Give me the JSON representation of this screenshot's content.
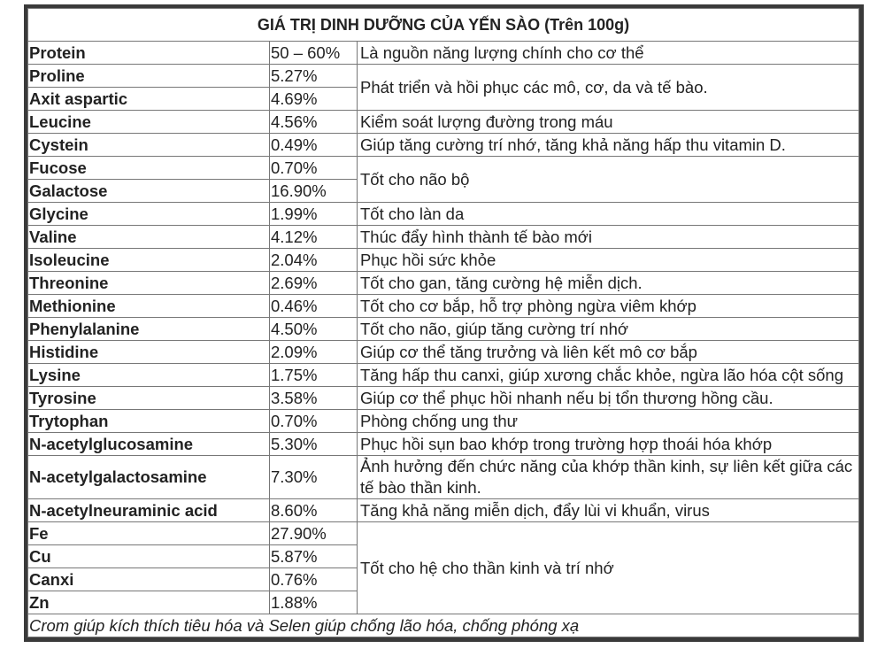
{
  "title": "GIÁ TRỊ DINH DƯỠNG CỦA YẾN SÀO (Trên 100g)",
  "rows": [
    {
      "name": "Protein",
      "value": "50 – 60%",
      "desc": "Là nguồn năng lượng chính cho cơ thể",
      "span": 1
    },
    {
      "name": "Proline",
      "value": "5.27%",
      "desc": "Phát triển và hồi phục các mô, cơ, da và tế bào.",
      "span": 2
    },
    {
      "name": "Axit aspartic",
      "value": "4.69%"
    },
    {
      "name": "Leucine",
      "value": "4.56%",
      "desc": "Kiểm soát lượng đường trong máu",
      "span": 1
    },
    {
      "name": "Cystein",
      "value": "0.49%",
      "desc": "Giúp tăng cường trí nhớ, tăng khả năng hấp thu vitamin D.",
      "span": 1
    },
    {
      "name": "Fucose",
      "value": "0.70%",
      "desc": "Tốt cho não bộ",
      "span": 2
    },
    {
      "name": "Galactose",
      "value": "16.90%"
    },
    {
      "name": "Glycine",
      "value": "1.99%",
      "desc": "Tốt cho làn da",
      "span": 1
    },
    {
      "name": "Valine",
      "value": "4.12%",
      "desc": "Thúc đẩy hình thành tế bào mới",
      "span": 1
    },
    {
      "name": "Isoleucine",
      "value": "2.04%",
      "desc": "Phục hồi sức khỏe",
      "span": 1
    },
    {
      "name": "Threonine",
      "value": "2.69%",
      "desc": "Tốt cho gan, tăng cường hệ miễn dịch.",
      "span": 1
    },
    {
      "name": "Methionine",
      "value": "0.46%",
      "desc": "Tốt cho cơ bắp, hỗ trợ phòng ngừa viêm khớp",
      "span": 1
    },
    {
      "name": "Phenylalanine",
      "value": "4.50%",
      "desc": "Tốt cho não, giúp tăng cường trí nhớ",
      "span": 1
    },
    {
      "name": "Histidine",
      "value": "2.09%",
      "desc": "Giúp cơ thể tăng trưởng và liên kết mô cơ bắp",
      "span": 1
    },
    {
      "name": "Lysine",
      "value": "1.75%",
      "desc": "Tăng hấp thu canxi, giúp xương chắc khỏe, ngừa lão hóa cột sống",
      "span": 1
    },
    {
      "name": "Tyrosine",
      "value": "3.58%",
      "desc": "Giúp cơ thể phục hồi nhanh nếu bị tổn thương hồng cầu.",
      "span": 1
    },
    {
      "name": "Trytophan",
      "value": "0.70%",
      "desc": "Phòng chống ung thư",
      "span": 1
    },
    {
      "name": "N-acetylglucosamine",
      "value": "5.30%",
      "desc": "Phục hồi sụn bao khớp trong trường hợp thoái hóa khớp",
      "span": 1
    },
    {
      "name": "N-acetylgalactosamine",
      "value": "7.30%",
      "desc": "Ảnh hưởng đến chức năng của khớp thần kinh, sự liên kết giữa các tế bào thần kinh.",
      "span": 1
    },
    {
      "name": "N-acetylneuraminic acid",
      "value": "8.60%",
      "desc": "Tăng khả năng miễn dịch, đẩy lùi vi khuẩn, virus",
      "span": 1
    },
    {
      "name": "Fe",
      "value": "27.90%",
      "desc": "Tốt cho hệ cho thần kinh và trí nhớ",
      "span": 4
    },
    {
      "name": "Cu",
      "value": "5.87%"
    },
    {
      "name": "Canxi",
      "value": "0.76%"
    },
    {
      "name": "Zn",
      "value": "1.88%"
    }
  ],
  "footer": "Crom giúp kích thích tiêu hóa và Selen giúp chống lão hóa, chống phóng xạ"
}
